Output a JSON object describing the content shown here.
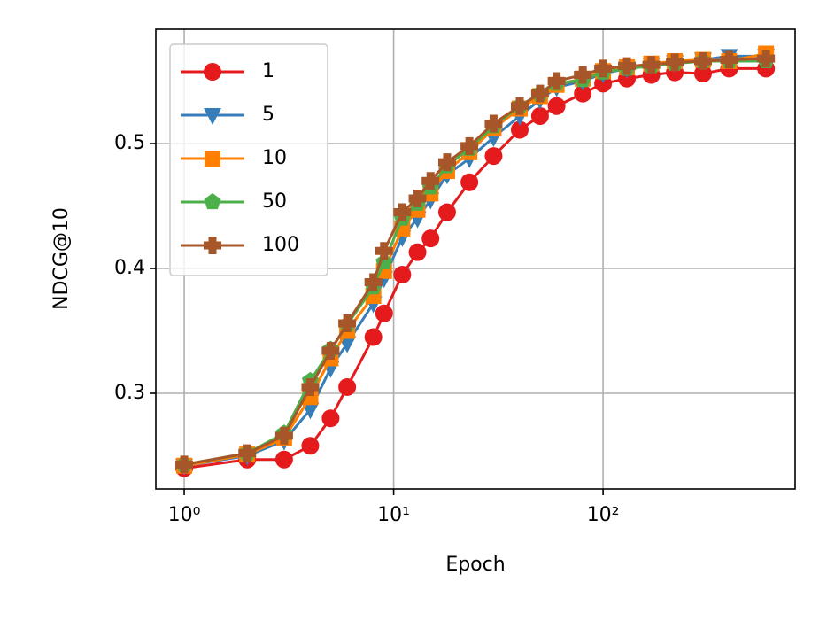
{
  "chart_data": {
    "type": "line",
    "x_label": "Epoch",
    "y_label": "NDCG@10",
    "x": [
      1,
      2,
      3,
      4,
      5,
      6,
      8,
      9,
      11,
      13,
      15,
      18,
      23,
      30,
      40,
      50,
      60,
      80,
      100,
      130,
      170,
      220,
      300,
      400,
      600
    ],
    "series": [
      {
        "name": "1",
        "color": "#e41a1c",
        "marker": "circle",
        "values": [
          0.24,
          0.247,
          0.247,
          0.258,
          0.28,
          0.305,
          0.345,
          0.364,
          0.395,
          0.413,
          0.424,
          0.445,
          0.469,
          0.49,
          0.511,
          0.522,
          0.53,
          0.54,
          0.548,
          0.552,
          0.555,
          0.557,
          0.556,
          0.56,
          0.56
        ]
      },
      {
        "name": "5",
        "color": "#377eb8",
        "marker": "triangle-down",
        "values": [
          0.242,
          0.25,
          0.262,
          0.287,
          0.32,
          0.34,
          0.372,
          0.392,
          0.425,
          0.44,
          0.455,
          0.475,
          0.488,
          0.505,
          0.522,
          0.535,
          0.545,
          0.55,
          0.556,
          0.56,
          0.563,
          0.565,
          0.567,
          0.57,
          0.57
        ]
      },
      {
        "name": "10",
        "color": "#ff7f00",
        "marker": "square",
        "values": [
          0.242,
          0.251,
          0.264,
          0.297,
          0.328,
          0.35,
          0.378,
          0.398,
          0.432,
          0.447,
          0.46,
          0.478,
          0.493,
          0.512,
          0.528,
          0.538,
          0.547,
          0.552,
          0.558,
          0.561,
          0.564,
          0.566,
          0.567,
          0.566,
          0.572
        ]
      },
      {
        "name": "50",
        "color": "#4daf4a",
        "marker": "pentagon",
        "values": [
          0.243,
          0.252,
          0.268,
          0.31,
          0.335,
          0.355,
          0.385,
          0.405,
          0.44,
          0.452,
          0.465,
          0.482,
          0.496,
          0.514,
          0.53,
          0.54,
          0.548,
          0.551,
          0.557,
          0.56,
          0.562,
          0.564,
          0.566,
          0.566,
          0.566
        ]
      },
      {
        "name": "100",
        "color": "#a65628",
        "marker": "plus",
        "values": [
          0.243,
          0.252,
          0.266,
          0.305,
          0.334,
          0.356,
          0.389,
          0.414,
          0.445,
          0.456,
          0.47,
          0.485,
          0.498,
          0.516,
          0.53,
          0.54,
          0.55,
          0.555,
          0.56,
          0.562,
          0.563,
          0.565,
          0.566,
          0.567,
          0.568
        ]
      }
    ],
    "x_scale": "log",
    "xlim": [
      0.732,
      826
    ],
    "xticks": [
      {
        "value": 1,
        "label": "10⁰"
      },
      {
        "value": 10,
        "label": "10¹"
      },
      {
        "value": 100,
        "label": "10²"
      }
    ],
    "ylim": [
      0.2234,
      0.5915
    ],
    "yticks": [
      0.3,
      0.4,
      0.5
    ],
    "grid": true,
    "legend_position": "upper-left"
  }
}
